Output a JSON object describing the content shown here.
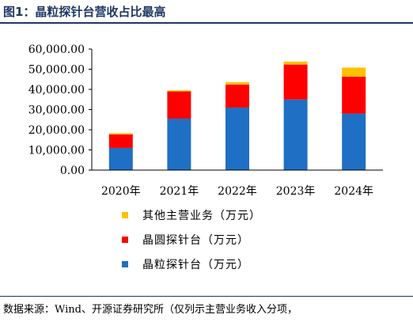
{
  "figure": {
    "title": "图1：晶粒探针台营收占比最高",
    "source": "数据来源：Wind、开源证券研究所（仅列示主营业务收入分项，"
  },
  "colors": {
    "title": "#1f3864",
    "series": [
      "#1f6fc4",
      "#ff0000",
      "#ffc000"
    ]
  },
  "chart_data": {
    "type": "bar",
    "stacked": true,
    "categories": [
      "2020年",
      "2021年",
      "2022年",
      "2023年",
      "2024年"
    ],
    "series": [
      {
        "name": "晶粒探针台（万元）",
        "values": [
          11000,
          25500,
          31000,
          35000,
          28000
        ]
      },
      {
        "name": "晶圆探针台（万元）",
        "values": [
          6700,
          13500,
          11400,
          17300,
          18300
        ]
      },
      {
        "name": "其他主营业务（万元）",
        "values": [
          600,
          500,
          1200,
          1500,
          4500
        ]
      }
    ],
    "ylim": [
      0,
      60000
    ],
    "yticks": [
      "0.00",
      "10,000.00",
      "20,000.00",
      "30,000.00",
      "40,000.00",
      "50,000.00",
      "60,000.00"
    ],
    "legend_position": "bottom",
    "grid": false
  }
}
